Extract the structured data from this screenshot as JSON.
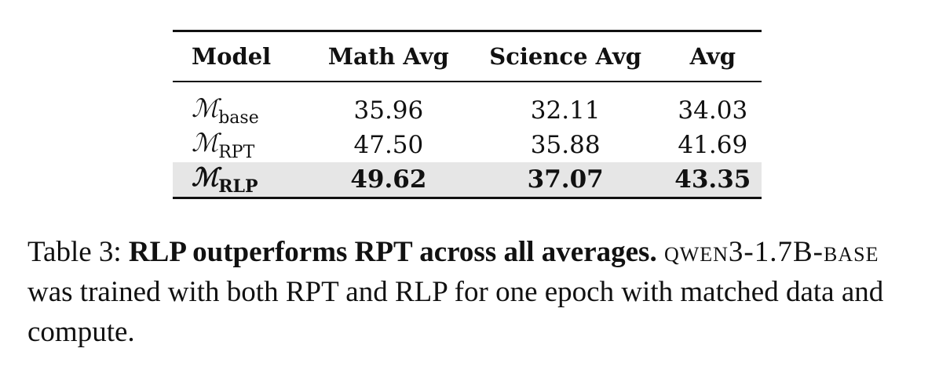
{
  "table": {
    "header": [
      "Model",
      "Math Avg",
      "Science Avg",
      "Avg"
    ],
    "rows": [
      [
        {
          "symbol": "ℳ",
          "subscript": "base"
        },
        "35.96",
        "32.11",
        "34.03"
      ],
      [
        {
          "symbol": "ℳ",
          "subscript": "RPT"
        },
        "47.50",
        "35.88",
        "41.69"
      ],
      [
        {
          "symbol": "ℳ",
          "subscript": "RLP"
        },
        "49.62",
        "37.07",
        "43.35"
      ]
    ]
  },
  "caption": {
    "label": "Table 3:",
    "headline": "RLP outperforms RPT across all averages.",
    "model": "qwen3-1.7B-base",
    "text": "was trained with both RPT and RLP for one epoch with matched data and compute."
  }
}
